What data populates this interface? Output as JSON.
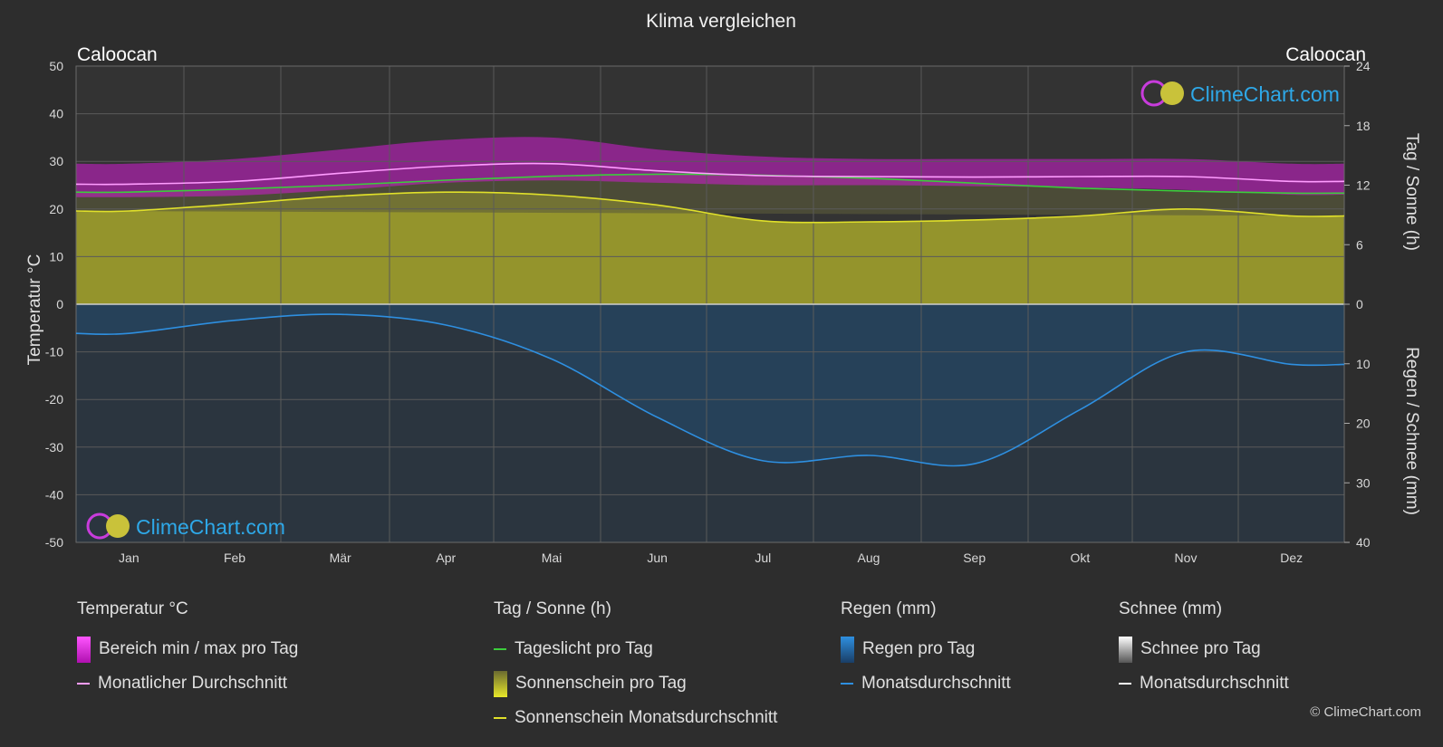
{
  "title": "Klima vergleichen",
  "location_left": "Caloocan",
  "location_right": "Caloocan",
  "axis_left_label": "Temperatur °C",
  "axis_right_top_label": "Tag / Sonne (h)",
  "axis_right_bottom_label": "Regen / Schnee (mm)",
  "watermark": "ClimeChart.com",
  "copyright": "© ClimeChart.com",
  "colors": {
    "background": "#2d2d2d",
    "temp_range": "#d21cd2",
    "temp_avg": "#ff9cff",
    "daylight": "#3ccc3c",
    "sunshine_fill": "#a6a62c",
    "sunshine_avg": "#e0e02a",
    "rain_fill": "#1e6aa5",
    "rain_avg": "#2e8fe0",
    "snow_avg": "#ffffff"
  },
  "legend": {
    "temp": {
      "header": "Temperatur °C",
      "range": "Bereich min / max pro Tag",
      "avg": "Monatlicher Durchschnitt"
    },
    "sun": {
      "header": "Tag / Sonne (h)",
      "daylight": "Tageslicht pro Tag",
      "sunshine": "Sonnenschein pro Tag",
      "sunshine_avg": "Sonnenschein Monatsdurchschnitt"
    },
    "rain": {
      "header": "Regen (mm)",
      "rain": "Regen pro Tag",
      "avg": "Monatsdurchschnitt"
    },
    "snow": {
      "header": "Schnee (mm)",
      "snow": "Schnee pro Tag",
      "avg": "Monatsdurchschnitt"
    }
  },
  "chart_data": {
    "type": "area",
    "title": "Klima vergleichen",
    "categories": [
      "Jan",
      "Feb",
      "Mär",
      "Apr",
      "Mai",
      "Jun",
      "Jul",
      "Aug",
      "Sep",
      "Okt",
      "Nov",
      "Dez"
    ],
    "y_left": {
      "label": "Temperatur °C",
      "range": [
        -50,
        50
      ],
      "ticks": [
        50,
        40,
        30,
        20,
        10,
        0,
        -10,
        -20,
        -30,
        -40,
        -50
      ]
    },
    "y_right_top": {
      "label": "Tag / Sonne (h)",
      "range": [
        0,
        24
      ],
      "ticks": [
        24,
        18,
        12,
        6,
        0
      ]
    },
    "y_right_bottom": {
      "label": "Regen / Schnee (mm)",
      "range": [
        0,
        40
      ],
      "ticks": [
        0,
        10,
        20,
        30,
        40
      ]
    },
    "grid": true,
    "series": [
      {
        "name": "Monatlicher Durchschnitt",
        "unit": "°C",
        "values": [
          25.2,
          25.8,
          27.5,
          29.0,
          29.5,
          28.0,
          27.0,
          26.8,
          26.7,
          26.8,
          26.8,
          25.8
        ]
      },
      {
        "name": "Bereich min / max pro Tag (min)",
        "unit": "°C",
        "values": [
          22.5,
          22.8,
          24.0,
          25.5,
          26.0,
          25.5,
          25.0,
          25.0,
          24.8,
          24.5,
          24.0,
          23.0
        ]
      },
      {
        "name": "Bereich min / max pro Tag (max)",
        "unit": "°C",
        "values": [
          29.5,
          30.5,
          32.5,
          34.5,
          35.0,
          32.5,
          31.0,
          30.5,
          30.5,
          30.5,
          30.5,
          29.5
        ]
      },
      {
        "name": "Tageslicht pro Tag",
        "unit": "h",
        "values": [
          11.3,
          11.6,
          12.0,
          12.5,
          12.9,
          13.1,
          13.0,
          12.7,
          12.2,
          11.7,
          11.4,
          11.2
        ]
      },
      {
        "name": "Sonnenschein Monatsdurchschnitt",
        "unit": "h",
        "values": [
          9.4,
          10.1,
          10.9,
          11.3,
          11.0,
          10.0,
          8.4,
          8.3,
          8.5,
          8.9,
          9.6,
          8.9
        ]
      },
      {
        "name": "Regen Monatsdurchschnitt",
        "unit": "mm",
        "values": [
          4.9,
          2.7,
          1.7,
          3.5,
          9.2,
          19.0,
          26.3,
          25.4,
          26.8,
          17.7,
          8.0,
          10.1
        ]
      },
      {
        "name": "Schnee Monatsdurchschnitt",
        "unit": "mm",
        "values": [
          0,
          0,
          0,
          0,
          0,
          0,
          0,
          0,
          0,
          0,
          0,
          0
        ]
      }
    ]
  }
}
